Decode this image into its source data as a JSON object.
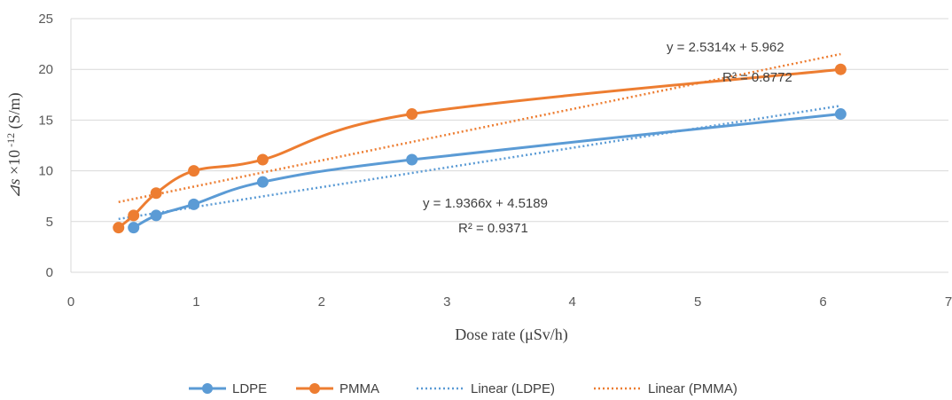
{
  "chart_data": {
    "type": "line",
    "xlabel": "Dose rate (μSv/h)",
    "ylabel": {
      "symbol": "⊿s",
      "mult": " ×10",
      "exp": " -12",
      "unit": " (S/m)"
    },
    "xlim": [
      0,
      7
    ],
    "ylim": [
      0,
      25
    ],
    "xticks": [
      "0",
      "1",
      "2",
      "3",
      "4",
      "5",
      "6",
      "7"
    ],
    "yticks": [
      "0",
      "5",
      "10",
      "15",
      "20",
      "25"
    ],
    "grid": "horizontal",
    "legend_position": "bottom",
    "series": [
      {
        "name": "LDPE",
        "color": "#5b9bd5",
        "x": [
          0.5,
          0.68,
          0.98,
          1.53,
          2.72,
          6.14
        ],
        "y": [
          4.4,
          5.6,
          6.7,
          8.9,
          11.1,
          15.6
        ]
      },
      {
        "name": "PMMA",
        "color": "#ed7d31",
        "x": [
          0.38,
          0.5,
          0.68,
          0.98,
          1.53,
          2.72,
          6.14
        ],
        "y": [
          4.4,
          5.6,
          7.8,
          10.0,
          11.1,
          15.6,
          20.0
        ]
      }
    ],
    "trendlines": [
      {
        "name": "Linear (LDPE)",
        "color": "#5b9bd5",
        "slope": 1.9366,
        "intercept": 4.5189,
        "x_range": [
          0.38,
          6.14
        ],
        "equation": "y = 1.9366x + 4.5189",
        "r2": "R² = 0.9371"
      },
      {
        "name": "Linear (PMMA)",
        "color": "#ed7d31",
        "slope": 2.5314,
        "intercept": 5.962,
        "x_range": [
          0.38,
          6.14
        ],
        "equation": "y = 2.5314x + 5.962",
        "r2": "R² = 0.8772"
      }
    ]
  }
}
